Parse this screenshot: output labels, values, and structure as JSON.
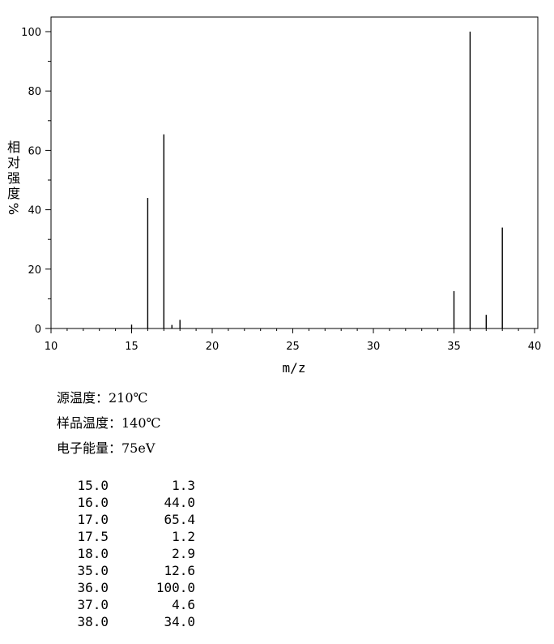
{
  "chart_data": {
    "type": "bar",
    "xlabel": "m/z",
    "ylabel": "相对强度",
    "ylabel_unit": "%",
    "xlim": [
      10,
      40
    ],
    "ylim": [
      0,
      100
    ],
    "x_ticks": [
      10,
      15,
      20,
      25,
      30,
      35,
      40
    ],
    "y_ticks": [
      0,
      20,
      40,
      60,
      80,
      100
    ],
    "grid": false,
    "peaks": [
      {
        "mz": 15.0,
        "abundance": 1.3
      },
      {
        "mz": 16.0,
        "abundance": 44.0
      },
      {
        "mz": 17.0,
        "abundance": 65.4
      },
      {
        "mz": 17.5,
        "abundance": 1.2
      },
      {
        "mz": 18.0,
        "abundance": 2.9
      },
      {
        "mz": 35.0,
        "abundance": 12.6
      },
      {
        "mz": 36.0,
        "abundance": 100.0
      },
      {
        "mz": 37.0,
        "abundance": 4.6
      },
      {
        "mz": 38.0,
        "abundance": 34.0
      }
    ]
  },
  "conditions": {
    "source_temp": "源温度：210℃",
    "sample_temp": "样品温度：140℃",
    "electron_energy": "电子能量：75eV"
  },
  "peak_table": [
    {
      "mz": "15.0",
      "abundance": "1.3"
    },
    {
      "mz": "16.0",
      "abundance": "44.0"
    },
    {
      "mz": "17.0",
      "abundance": "65.4"
    },
    {
      "mz": "17.5",
      "abundance": "1.2"
    },
    {
      "mz": "18.0",
      "abundance": "2.9"
    },
    {
      "mz": "35.0",
      "abundance": "12.6"
    },
    {
      "mz": "36.0",
      "abundance": "100.0"
    },
    {
      "mz": "37.0",
      "abundance": "4.6"
    },
    {
      "mz": "38.0",
      "abundance": "34.0"
    }
  ]
}
